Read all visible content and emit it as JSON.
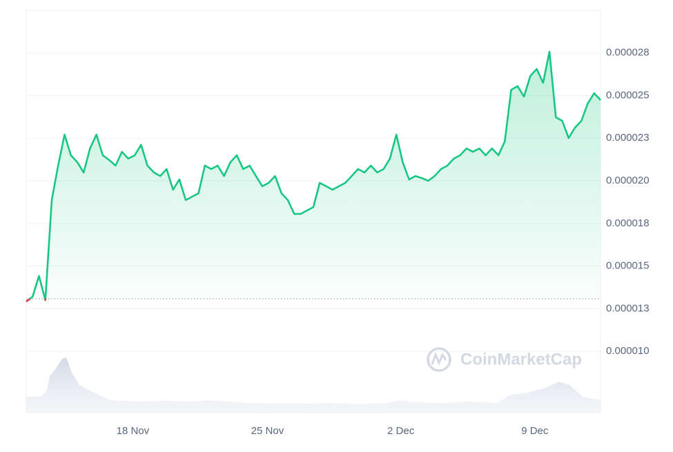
{
  "chart_data": {
    "type": "line",
    "series": [
      {
        "name": "Price",
        "color": "#16c784",
        "below_color": "#ea3943",
        "values": [
          1.292e-05,
          1.32e-05,
          1.442e-05,
          1.3e-05,
          1.887e-05,
          2.089e-05,
          2.271e-05,
          2.15e-05,
          2.109e-05,
          2.049e-05,
          2.19e-05,
          2.271e-05,
          2.15e-05,
          2.122e-05,
          2.089e-05,
          2.17e-05,
          2.13e-05,
          2.15e-05,
          2.211e-05,
          2.089e-05,
          2.049e-05,
          2.028e-05,
          2.069e-05,
          1.948e-05,
          2.008e-05,
          1.887e-05,
          1.907e-05,
          1.927e-05,
          2.089e-05,
          2.069e-05,
          2.089e-05,
          2.028e-05,
          2.109e-05,
          2.15e-05,
          2.069e-05,
          2.089e-05,
          2.028e-05,
          1.968e-05,
          1.988e-05,
          2.028e-05,
          1.927e-05,
          1.887e-05,
          1.806e-05,
          1.806e-05,
          1.826e-05,
          1.846e-05,
          1.988e-05,
          1.968e-05,
          1.948e-05,
          1.968e-05,
          1.988e-05,
          2.028e-05,
          2.069e-05,
          2.049e-05,
          2.089e-05,
          2.049e-05,
          2.069e-05,
          2.13e-05,
          2.271e-05,
          2.109e-05,
          2.008e-05,
          2.028e-05,
          2.016e-05,
          2e-05,
          2.028e-05,
          2.069e-05,
          2.089e-05,
          2.13e-05,
          2.15e-05,
          2.19e-05,
          2.17e-05,
          2.19e-05,
          2.15e-05,
          2.19e-05,
          2.15e-05,
          2.231e-05,
          2.534e-05,
          2.555e-05,
          2.494e-05,
          2.615e-05,
          2.656e-05,
          2.575e-05,
          2.757e-05,
          2.373e-05,
          2.352e-05,
          2.251e-05,
          2.312e-05,
          2.352e-05,
          2.454e-05,
          2.514e-05,
          2.474e-05
        ]
      }
    ],
    "baseline": 1.308e-05,
    "xlim": [
      0,
      90
    ],
    "xticks": [
      {
        "value": 16.7,
        "label": "18 Nov"
      },
      {
        "value": 37.8,
        "label": "25 Nov"
      },
      {
        "value": 58.7,
        "label": "2 Dec"
      },
      {
        "value": 79.7,
        "label": "9 Dec"
      }
    ],
    "ylim": [
      6.4e-06,
      3e-05
    ],
    "yticks": [
      {
        "value": 2.75e-05,
        "label": "0.000028"
      },
      {
        "value": 2.5e-05,
        "label": "0.000025"
      },
      {
        "value": 2.25e-05,
        "label": "0.000023"
      },
      {
        "value": 2e-05,
        "label": "0.000020"
      },
      {
        "value": 1.75e-05,
        "label": "0.000018"
      },
      {
        "value": 1.5e-05,
        "label": "0.000015"
      },
      {
        "value": 1.25e-05,
        "label": "0.000013"
      },
      {
        "value": 1e-05,
        "label": "0.000010"
      }
    ],
    "grid": true,
    "watermark": "CoinMarketCap"
  }
}
